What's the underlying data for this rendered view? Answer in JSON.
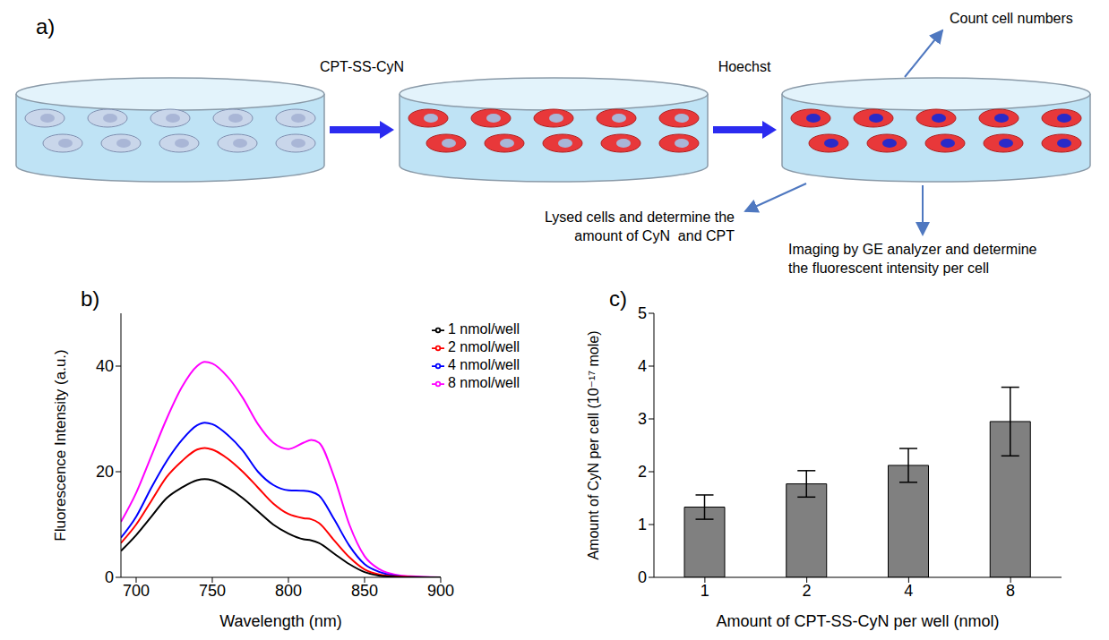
{
  "diagram": {
    "panel_label": "a)",
    "steps": [
      "CPT-SS-CyN",
      "Hoechst"
    ],
    "outputs": [
      "Count cell numbers",
      "Lysed cells and determine the amount of CyN  and CPT",
      "Imaging by GE analyzer and determine the fluorescent intensity per cell"
    ]
  },
  "chart_data": [
    {
      "type": "line",
      "panel_label": "b)",
      "x_label": "Wavelength (nm)",
      "y_label": "Fluorescence Intensity (a.u.)",
      "x": [
        690,
        700,
        710,
        720,
        730,
        740,
        745,
        750,
        760,
        770,
        780,
        790,
        800,
        810,
        815,
        820,
        830,
        840,
        850,
        860,
        870,
        880,
        900
      ],
      "series": [
        {
          "name": "8 nmol/well",
          "color": "#ff00ff",
          "values": [
            10.5,
            16,
            23,
            30,
            36,
            40,
            40.8,
            40.5,
            38,
            34,
            29,
            25.5,
            24.3,
            25.5,
            26,
            25.5,
            19,
            10,
            4,
            1.5,
            0.5,
            0.2,
            0
          ]
        },
        {
          "name": "4 nmol/well",
          "color": "#0000ff",
          "values": [
            7.5,
            11.5,
            17,
            22,
            26,
            28.8,
            29.3,
            29,
            27,
            24,
            20,
            17.5,
            16.5,
            16.4,
            16.2,
            15.5,
            11,
            6,
            2.5,
            1,
            0.3,
            0.1,
            0
          ]
        },
        {
          "name": "2 nmol/well",
          "color": "#ff0000",
          "values": [
            6.5,
            10,
            14.5,
            19,
            22,
            24.2,
            24.5,
            24.2,
            22.5,
            20,
            17,
            14,
            12,
            11.2,
            11,
            10.3,
            7,
            3.8,
            1.5,
            0.5,
            0.2,
            0.1,
            0
          ]
        },
        {
          "name": "1 nmol/well",
          "color": "#000000",
          "values": [
            5,
            8,
            11.5,
            15,
            17,
            18.4,
            18.6,
            18.4,
            17,
            15,
            12.5,
            10,
            8.3,
            7.2,
            7,
            6.5,
            4.5,
            2.5,
            1,
            0.3,
            0.1,
            0,
            0
          ]
        }
      ],
      "xlim": [
        690,
        900
      ],
      "xticks": [
        700,
        750,
        800,
        850,
        900
      ],
      "ylim": [
        0,
        50
      ],
      "yticks": [
        0,
        20,
        40
      ],
      "legend": "upper right",
      "grid": false
    },
    {
      "type": "bar",
      "panel_label": "c)",
      "x_label": "Amount of CPT-SS-CyN per well (nmol)",
      "y_label": "Amount of CyN per cell (10⁻¹⁷ mole)",
      "categories": [
        "1",
        "2",
        "4",
        "8"
      ],
      "values": [
        1.33,
        1.77,
        2.12,
        2.95
      ],
      "errors": [
        0.23,
        0.25,
        0.32,
        0.65
      ],
      "color": "#808080",
      "ylim": [
        0,
        5
      ],
      "yticks": [
        0,
        1,
        2,
        3,
        4,
        5
      ],
      "grid": false
    }
  ]
}
